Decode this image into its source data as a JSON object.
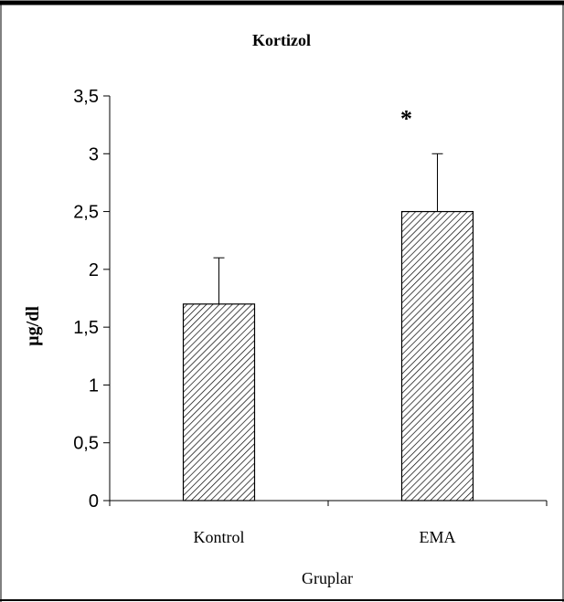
{
  "chart_data": {
    "type": "bar",
    "title": "Kortizol",
    "xlabel": "Gruplar",
    "ylabel": "µg/dl",
    "categories": [
      "Kontrol",
      "EMA"
    ],
    "values": [
      1.7,
      2.5
    ],
    "error_plus": [
      0.4,
      0.5
    ],
    "significance": [
      "",
      "*"
    ],
    "ylim": [
      0,
      3.5
    ],
    "y_ticks": [
      0,
      0.5,
      1,
      1.5,
      2,
      2.5,
      3,
      3.5
    ],
    "y_tick_labels": [
      "0",
      "0,5",
      "1",
      "1,5",
      "2",
      "2,5",
      "3",
      "3,5"
    ],
    "grid": false,
    "legend": "none",
    "bar_fill": "diagonal-hatch",
    "colors": {
      "bar_stroke": "#000000",
      "hatch": "#000000",
      "background": "#ffffff"
    }
  }
}
